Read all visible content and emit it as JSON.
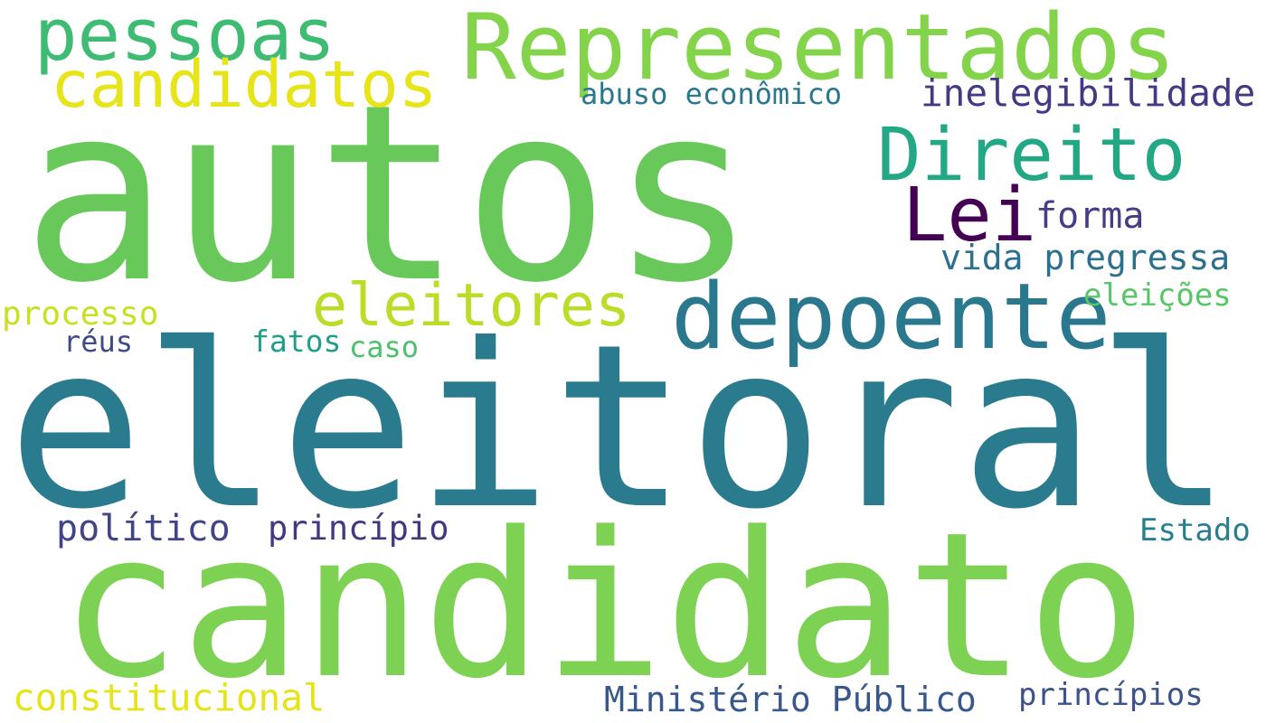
{
  "words": [
    {
      "text": "autos",
      "color": "#68c95a"
    },
    {
      "text": "eleitoral",
      "color": "#2b7b8e"
    },
    {
      "text": "candidato",
      "color": "#7dd253"
    },
    {
      "text": "Representados",
      "color": "#84d44b"
    },
    {
      "text": "pessoas",
      "color": "#3fbc73"
    },
    {
      "text": "candidatos",
      "color": "#e7e419"
    },
    {
      "text": "Direito",
      "color": "#22a884"
    },
    {
      "text": "Lei",
      "color": "#440154"
    },
    {
      "text": "depoente",
      "color": "#2a788e"
    },
    {
      "text": "eleitores",
      "color": "#bade28"
    },
    {
      "text": "inelegibilidade",
      "color": "#443983"
    },
    {
      "text": "abuso econômico",
      "color": "#2a788e"
    },
    {
      "text": "forma",
      "color": "#433e85"
    },
    {
      "text": "vida pregressa",
      "color": "#2d708e"
    },
    {
      "text": "eleições",
      "color": "#56c667"
    },
    {
      "text": "processo",
      "color": "#c8e020"
    },
    {
      "text": "réus",
      "color": "#3e4a89"
    },
    {
      "text": "fatos",
      "color": "#1f9e89"
    },
    {
      "text": "caso",
      "color": "#4ac16d"
    },
    {
      "text": "político",
      "color": "#414487"
    },
    {
      "text": "princípio",
      "color": "#453781"
    },
    {
      "text": "Estado",
      "color": "#277f8e"
    },
    {
      "text": "constitucional",
      "color": "#e5e419"
    },
    {
      "text": "Ministério Público",
      "color": "#38588c"
    },
    {
      "text": "princípios",
      "color": "#3b528b"
    }
  ]
}
